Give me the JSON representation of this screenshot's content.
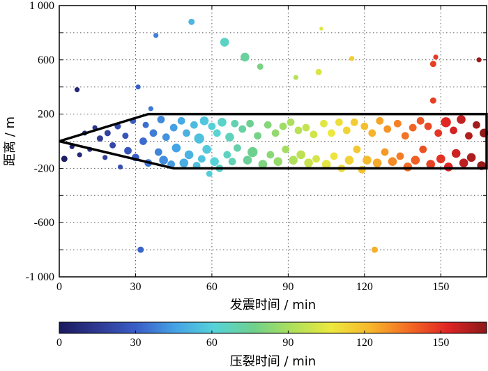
{
  "chart_data": {
    "type": "scatter",
    "xlabel": "发震时间 / min",
    "ylabel": "距离 / m",
    "xlim": [
      0,
      168
    ],
    "ylim": [
      -1000,
      1000
    ],
    "xticks": [
      0,
      30,
      60,
      90,
      120,
      150
    ],
    "yticks": [
      {
        "value": 1000,
        "label": "1 000"
      },
      {
        "value": 600,
        "label": "600"
      },
      {
        "value": 200,
        "label": "200"
      },
      {
        "value": -200,
        "label": "-200"
      },
      {
        "value": -600,
        "label": "-600"
      },
      {
        "value": -1000,
        "label": "-1 000"
      }
    ],
    "grid": true,
    "grid_style": "dotted",
    "boundary": {
      "color": "#000000",
      "outline": [
        [
          0,
          0
        ],
        [
          35,
          200
        ],
        [
          168,
          200
        ],
        [
          168,
          -200
        ],
        [
          45,
          -200
        ],
        [
          0,
          0
        ]
      ]
    },
    "colorbar": {
      "label": "压裂时间 / min",
      "range": [
        0,
        168
      ],
      "ticks": [
        0,
        30,
        60,
        90,
        120,
        150
      ],
      "colormap": [
        "#1b1a5e",
        "#2e3992",
        "#3a5fc8",
        "#45a3e6",
        "#56d3d8",
        "#6fd08c",
        "#aee05a",
        "#ece83e",
        "#f7b72b",
        "#f36b24",
        "#df2424",
        "#8b1a1a"
      ]
    },
    "points": [
      {
        "x": 2,
        "y": -130,
        "size": 5
      },
      {
        "x": 5,
        "y": -40,
        "size": 4
      },
      {
        "x": 7,
        "y": 380,
        "size": 4
      },
      {
        "x": 8,
        "y": -100,
        "size": 4
      },
      {
        "x": 10,
        "y": 60,
        "size": 4
      },
      {
        "x": 12,
        "y": -60,
        "size": 4
      },
      {
        "x": 14,
        "y": 100,
        "size": 4
      },
      {
        "x": 16,
        "y": 20,
        "size": 5
      },
      {
        "x": 18,
        "y": -120,
        "size": 4
      },
      {
        "x": 19,
        "y": 60,
        "size": 5
      },
      {
        "x": 21,
        "y": -30,
        "size": 5
      },
      {
        "x": 23,
        "y": 110,
        "size": 5
      },
      {
        "x": 24,
        "y": -190,
        "size": 4
      },
      {
        "x": 26,
        "y": 40,
        "size": 5
      },
      {
        "x": 27,
        "y": -70,
        "size": 6
      },
      {
        "x": 29,
        "y": 150,
        "size": 5
      },
      {
        "x": 30,
        "y": -120,
        "size": 6
      },
      {
        "x": 31,
        "y": 400,
        "size": 4
      },
      {
        "x": 32,
        "y": -800,
        "size": 5
      },
      {
        "x": 33,
        "y": 0,
        "size": 6
      },
      {
        "x": 34,
        "y": 120,
        "size": 5
      },
      {
        "x": 35,
        "y": -160,
        "size": 6
      },
      {
        "x": 36,
        "y": 240,
        "size": 4
      },
      {
        "x": 37,
        "y": 60,
        "size": 6
      },
      {
        "x": 38,
        "y": 780,
        "size": 4
      },
      {
        "x": 39,
        "y": -80,
        "size": 6
      },
      {
        "x": 40,
        "y": 160,
        "size": 6
      },
      {
        "x": 41,
        "y": -140,
        "size": 7
      },
      {
        "x": 42,
        "y": 30,
        "size": 6
      },
      {
        "x": 44,
        "y": -170,
        "size": 6
      },
      {
        "x": 45,
        "y": 100,
        "size": 6
      },
      {
        "x": 46,
        "y": -50,
        "size": 7
      },
      {
        "x": 48,
        "y": 150,
        "size": 6
      },
      {
        "x": 49,
        "y": -160,
        "size": 7
      },
      {
        "x": 50,
        "y": 60,
        "size": 6
      },
      {
        "x": 51,
        "y": -100,
        "size": 7
      },
      {
        "x": 52,
        "y": 880,
        "size": 5
      },
      {
        "x": 53,
        "y": 120,
        "size": 6
      },
      {
        "x": 54,
        "y": -180,
        "size": 6
      },
      {
        "x": 55,
        "y": 20,
        "size": 8
      },
      {
        "x": 56,
        "y": -130,
        "size": 6
      },
      {
        "x": 57,
        "y": 150,
        "size": 7
      },
      {
        "x": 58,
        "y": -60,
        "size": 7
      },
      {
        "x": 59,
        "y": -240,
        "size": 5
      },
      {
        "x": 60,
        "y": 110,
        "size": 6
      },
      {
        "x": 61,
        "y": -150,
        "size": 7
      },
      {
        "x": 62,
        "y": 60,
        "size": 6
      },
      {
        "x": 63,
        "y": -200,
        "size": 6
      },
      {
        "x": 64,
        "y": 140,
        "size": 7
      },
      {
        "x": 65,
        "y": 730,
        "size": 7
      },
      {
        "x": 66,
        "y": -100,
        "size": 6
      },
      {
        "x": 67,
        "y": 30,
        "size": 7
      },
      {
        "x": 68,
        "y": -150,
        "size": 6
      },
      {
        "x": 69,
        "y": 130,
        "size": 6
      },
      {
        "x": 70,
        "y": -50,
        "size": 6
      },
      {
        "x": 72,
        "y": 90,
        "size": 6
      },
      {
        "x": 73,
        "y": 620,
        "size": 7
      },
      {
        "x": 74,
        "y": -140,
        "size": 7
      },
      {
        "x": 75,
        "y": 130,
        "size": 6
      },
      {
        "x": 76,
        "y": -80,
        "size": 8
      },
      {
        "x": 78,
        "y": 40,
        "size": 6
      },
      {
        "x": 79,
        "y": 550,
        "size": 5
      },
      {
        "x": 80,
        "y": -170,
        "size": 7
      },
      {
        "x": 82,
        "y": 120,
        "size": 6
      },
      {
        "x": 83,
        "y": -100,
        "size": 6
      },
      {
        "x": 85,
        "y": 60,
        "size": 6
      },
      {
        "x": 86,
        "y": -150,
        "size": 7
      },
      {
        "x": 88,
        "y": 110,
        "size": 6
      },
      {
        "x": 89,
        "y": -60,
        "size": 6
      },
      {
        "x": 91,
        "y": 140,
        "size": 6
      },
      {
        "x": 92,
        "y": -140,
        "size": 7
      },
      {
        "x": 93,
        "y": 470,
        "size": 4
      },
      {
        "x": 94,
        "y": 80,
        "size": 6
      },
      {
        "x": 95,
        "y": -100,
        "size": 7
      },
      {
        "x": 97,
        "y": 100,
        "size": 6
      },
      {
        "x": 98,
        "y": -160,
        "size": 7
      },
      {
        "x": 100,
        "y": 50,
        "size": 6
      },
      {
        "x": 101,
        "y": -130,
        "size": 6
      },
      {
        "x": 102,
        "y": 510,
        "size": 5
      },
      {
        "x": 103,
        "y": 830,
        "size": 3
      },
      {
        "x": 104,
        "y": 130,
        "size": 6
      },
      {
        "x": 105,
        "y": -170,
        "size": 7
      },
      {
        "x": 107,
        "y": 60,
        "size": 6
      },
      {
        "x": 108,
        "y": -110,
        "size": 6
      },
      {
        "x": 110,
        "y": 140,
        "size": 6
      },
      {
        "x": 111,
        "y": -200,
        "size": 6
      },
      {
        "x": 113,
        "y": 80,
        "size": 6
      },
      {
        "x": 114,
        "y": -140,
        "size": 7
      },
      {
        "x": 115,
        "y": 610,
        "size": 4
      },
      {
        "x": 116,
        "y": 140,
        "size": 6
      },
      {
        "x": 117,
        "y": -60,
        "size": 6
      },
      {
        "x": 119,
        "y": -210,
        "size": 6
      },
      {
        "x": 120,
        "y": 110,
        "size": 6
      },
      {
        "x": 121,
        "y": -140,
        "size": 7
      },
      {
        "x": 123,
        "y": 60,
        "size": 6
      },
      {
        "x": 124,
        "y": -800,
        "size": 5
      },
      {
        "x": 125,
        "y": -160,
        "size": 7
      },
      {
        "x": 126,
        "y": 150,
        "size": 6
      },
      {
        "x": 128,
        "y": -80,
        "size": 6
      },
      {
        "x": 129,
        "y": 90,
        "size": 6
      },
      {
        "x": 131,
        "y": -150,
        "size": 7
      },
      {
        "x": 133,
        "y": 130,
        "size": 6
      },
      {
        "x": 134,
        "y": -110,
        "size": 6
      },
      {
        "x": 136,
        "y": 40,
        "size": 6
      },
      {
        "x": 137,
        "y": -190,
        "size": 7
      },
      {
        "x": 139,
        "y": 100,
        "size": 6
      },
      {
        "x": 140,
        "y": -140,
        "size": 7
      },
      {
        "x": 142,
        "y": 150,
        "size": 6
      },
      {
        "x": 143,
        "y": -60,
        "size": 6
      },
      {
        "x": 145,
        "y": 110,
        "size": 6
      },
      {
        "x": 146,
        "y": -170,
        "size": 7
      },
      {
        "x": 147,
        "y": 300,
        "size": 5
      },
      {
        "x": 147,
        "y": 570,
        "size": 5
      },
      {
        "x": 148,
        "y": 620,
        "size": 4
      },
      {
        "x": 149,
        "y": 60,
        "size": 6
      },
      {
        "x": 150,
        "y": -130,
        "size": 7
      },
      {
        "x": 152,
        "y": 140,
        "size": 8
      },
      {
        "x": 153,
        "y": -190,
        "size": 7
      },
      {
        "x": 155,
        "y": 80,
        "size": 6
      },
      {
        "x": 156,
        "y": -90,
        "size": 7
      },
      {
        "x": 158,
        "y": 160,
        "size": 7
      },
      {
        "x": 159,
        "y": -160,
        "size": 7
      },
      {
        "x": 161,
        "y": 40,
        "size": 6
      },
      {
        "x": 162,
        "y": -120,
        "size": 7
      },
      {
        "x": 164,
        "y": 120,
        "size": 6
      },
      {
        "x": 165,
        "y": 600,
        "size": 4
      },
      {
        "x": 166,
        "y": -180,
        "size": 7
      },
      {
        "x": 167,
        "y": 60,
        "size": 7
      }
    ]
  }
}
